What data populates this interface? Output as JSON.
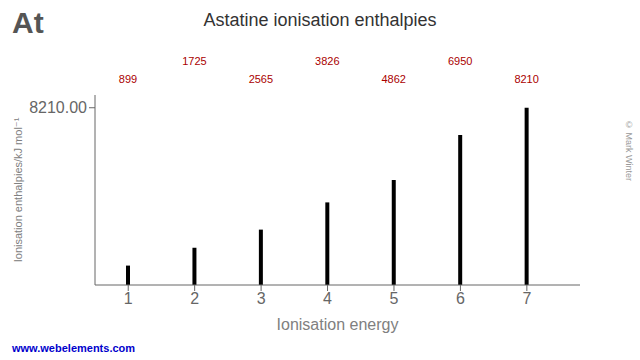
{
  "chart_data": {
    "type": "bar",
    "title": "Astatine ionisation enthalpies",
    "x_label": "Ionisation energy",
    "y_label": "Ionisation enthalpies/kJ mol⁻¹",
    "x": [
      1,
      2,
      3,
      4,
      5,
      6,
      7
    ],
    "values": [
      899,
      1725,
      2565,
      3826,
      4862,
      6950,
      8210
    ],
    "color": "#000000",
    "xlim": [
      0.5,
      7.8
    ],
    "xticks": [
      1,
      2,
      3,
      4,
      5,
      6,
      7
    ],
    "ylim": [
      0,
      8800
    ],
    "yticks": [
      {
        "value": 8210,
        "label": "8210.00"
      }
    ],
    "grid": false,
    "data_labels": true,
    "annotations": [
      "At",
      "© Mark Winter",
      "www.webelements.com"
    ]
  }
}
